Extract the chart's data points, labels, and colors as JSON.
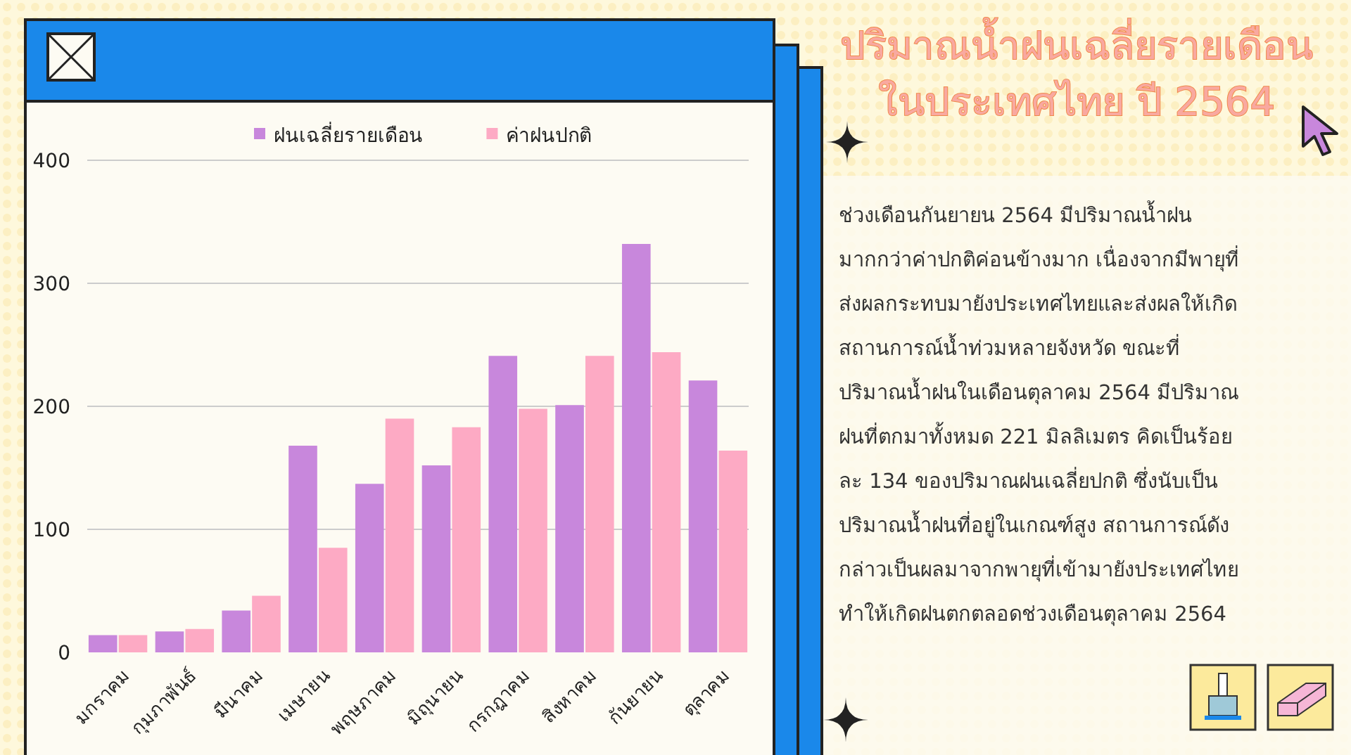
{
  "chart_data": {
    "type": "bar",
    "title": "ปริมาณน้ำฝนเฉลี่ยรายเดือน\nในประเทศไทย ปี 2564",
    "categories": [
      "มกราคม",
      "กุมภาพันธ์",
      "มีนาคม",
      "เมษายน",
      "พฤษภาคม",
      "มิถุนายน",
      "กรกฎาคม",
      "สิงหาคม",
      "กันยายน",
      "ตุลาคม"
    ],
    "series": [
      {
        "name": "ฝนเฉลี่ยรายเดือน",
        "color": "#c887dc",
        "values": [
          14,
          17,
          34,
          168,
          137,
          152,
          241,
          201,
          332,
          221
        ]
      },
      {
        "name": "ค่าฝนปกติ",
        "color": "#fdaac4",
        "values": [
          14,
          19,
          46,
          85,
          190,
          183,
          198,
          241,
          244,
          164
        ]
      }
    ],
    "ylim": [
      0,
      400
    ],
    "yticks": [
      0,
      100,
      200,
      300,
      400
    ],
    "grid": "y",
    "legend": "top",
    "annotations": [
      "ช่วงเดือนกันยายน 2564 มีปริมาณน้ำฝน\nมากกว่าค่าปกติค่อนข้างมาก เนื่องจากมีพายุที่\nส่งผลกระทบมายังประเทศไทยและส่งผลให้เกิด\nสถานการณ์น้ำท่วมหลายจังหวัด ขณะที่\nปริมาณน้ำฝนในเดือนตุลาคม 2564 มีปริมาณ\nฝนที่ตกมาทั้งหมด 221 มิลลิเมตร คิดเป็นร้อย\nละ 134 ของปริมาณฝนเฉลี่ยปกติ ซึ่งนับเป็น\nปริมาณน้ำฝนที่อยู่ในเกณฑ์สูง สถานการณ์ดัง\nกล่าวเป็นผลมาจากพายุที่เข้ามายังประเทศไทย\nทำให้เกิดฝนตกตลอดช่วงเดือนตุลาคม 2564"
    ]
  }
}
